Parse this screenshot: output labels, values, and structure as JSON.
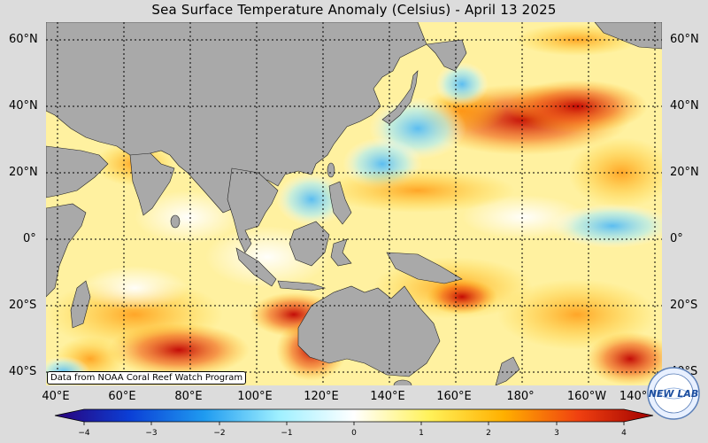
{
  "title": "Sea Surface Temperature Anomaly (Celsius) - April 13 2025",
  "credit": "Data from NOAA Coral Reef Watch Program",
  "lat_left": [
    "60°N",
    "40°N",
    "20°N",
    "0°",
    "20°S",
    "40°S"
  ],
  "lat_right": [
    "60°N",
    "40°N",
    "20°N",
    "0°",
    "20°S",
    "40°S"
  ],
  "lon_labels": [
    "40°E",
    "60°E",
    "80°E",
    "100°E",
    "120°E",
    "140°E",
    "160°E",
    "180°",
    "160°W",
    "140°W"
  ],
  "colorbar": {
    "ticks": [
      "−4",
      "−3",
      "−2",
      "−1",
      "0",
      "1",
      "2",
      "3",
      "4"
    ],
    "colors": [
      "#2a0078",
      "#0b3fd6",
      "#1f9bf0",
      "#9ff0ff",
      "#ffffff",
      "#fff25a",
      "#ffb000",
      "#f04010",
      "#a00000"
    ]
  },
  "logo": {
    "text": "NEW LAB"
  },
  "land_color": "#a9a9a9",
  "ocean_base_color": "#fff4a8"
}
